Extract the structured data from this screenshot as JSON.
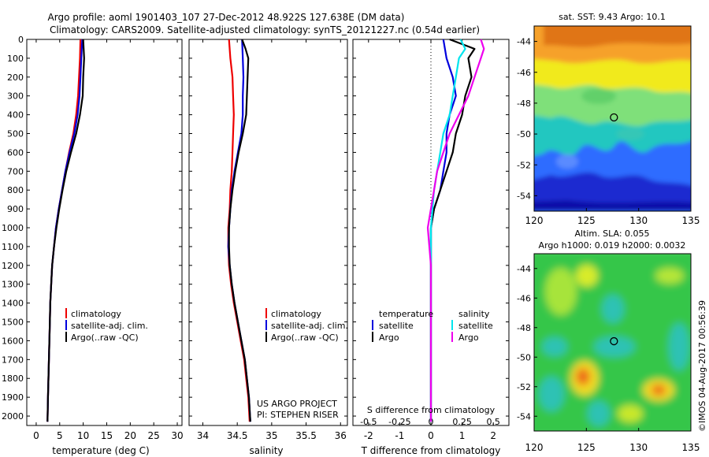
{
  "header": {
    "line1": "Argo profile: aoml 1901403_107 27-Dec-2012 48.922S 127.638E (DM data)",
    "line2": "Climatology: CARS2009. Satellite-adjusted climatology: synTS_20121227.nc (0.54d earlier)"
  },
  "stamp": "©IMOS 04-Aug-2017 00:56:39",
  "project": {
    "line1": "US ARGO PROJECT",
    "line2": "PI: STEPHEN RISER"
  },
  "colors": {
    "climatology": "#ee0000",
    "satellite": "#0000dd",
    "argo": "#000000",
    "sal_satellite": "#00e5ee",
    "sal_argo": "#ee00ee"
  },
  "chart_data": [
    {
      "type": "line",
      "name": "temperature-profile",
      "xlabel": "temperature (deg C)",
      "ylabel": "",
      "xlim": [
        -2,
        31
      ],
      "ylim": [
        2050,
        0
      ],
      "xticks": [
        0,
        5,
        10,
        15,
        20,
        25,
        30
      ],
      "yticks": [
        0,
        100,
        200,
        300,
        400,
        500,
        600,
        700,
        800,
        900,
        1000,
        1100,
        1200,
        1300,
        1400,
        1500,
        1600,
        1700,
        1800,
        1900,
        2000
      ],
      "legend": [
        "climatology",
        "satellite-adj. clim.",
        "Argo(..raw -QC)"
      ],
      "legend_position": "lower-left",
      "series": [
        {
          "name": "climatology",
          "color_key": "climatology",
          "points": [
            [
              9.4,
              0
            ],
            [
              9.3,
              100
            ],
            [
              9.1,
              200
            ],
            [
              8.9,
              300
            ],
            [
              8.5,
              400
            ],
            [
              7.9,
              500
            ],
            [
              7.0,
              600
            ],
            [
              6.2,
              700
            ],
            [
              5.5,
              800
            ],
            [
              4.8,
              900
            ],
            [
              4.2,
              1000
            ],
            [
              3.8,
              1100
            ],
            [
              3.4,
              1200
            ],
            [
              3.2,
              1300
            ],
            [
              3.0,
              1400
            ],
            [
              2.9,
              1500
            ],
            [
              2.8,
              1600
            ],
            [
              2.7,
              1700
            ],
            [
              2.6,
              1800
            ],
            [
              2.5,
              1900
            ],
            [
              2.4,
              2030
            ]
          ]
        },
        {
          "name": "satellite-adj. clim.",
          "color_key": "satellite",
          "points": [
            [
              9.8,
              0
            ],
            [
              9.6,
              100
            ],
            [
              9.4,
              200
            ],
            [
              9.2,
              300
            ],
            [
              8.8,
              400
            ],
            [
              8.1,
              500
            ],
            [
              7.1,
              600
            ],
            [
              6.2,
              700
            ],
            [
              5.5,
              800
            ],
            [
              4.8,
              900
            ],
            [
              4.2,
              1000
            ],
            [
              3.8,
              1100
            ],
            [
              3.4,
              1200
            ],
            [
              3.2,
              1300
            ],
            [
              3.0,
              1400
            ],
            [
              2.9,
              1500
            ],
            [
              2.8,
              1600
            ],
            [
              2.7,
              1700
            ],
            [
              2.6,
              1800
            ],
            [
              2.5,
              1900
            ],
            [
              2.4,
              2030
            ]
          ]
        },
        {
          "name": "Argo(..raw -QC)",
          "color_key": "argo",
          "points": [
            [
              10.0,
              0
            ],
            [
              10.1,
              50
            ],
            [
              10.2,
              100
            ],
            [
              10.0,
              200
            ],
            [
              9.9,
              300
            ],
            [
              9.3,
              400
            ],
            [
              8.5,
              500
            ],
            [
              7.4,
              600
            ],
            [
              6.4,
              700
            ],
            [
              5.6,
              800
            ],
            [
              4.9,
              900
            ],
            [
              4.3,
              1000
            ],
            [
              3.8,
              1100
            ],
            [
              3.4,
              1200
            ],
            [
              3.2,
              1300
            ],
            [
              3.0,
              1400
            ],
            [
              2.9,
              1500
            ],
            [
              2.8,
              1600
            ],
            [
              2.7,
              1700
            ],
            [
              2.6,
              1800
            ],
            [
              2.5,
              1900
            ],
            [
              2.4,
              2030
            ]
          ]
        }
      ]
    },
    {
      "type": "line",
      "name": "salinity-profile",
      "xlabel": "salinity",
      "xlim": [
        33.8,
        36.1
      ],
      "ylim": [
        2050,
        0
      ],
      "xticks": [
        34,
        34.5,
        35,
        35.5,
        36
      ],
      "xticklabels": [
        "34",
        "34.5",
        "35",
        "35.5",
        "36"
      ],
      "legend": [
        "climatology",
        "satellite-adj. clim.",
        "Argo(..raw -QC)"
      ],
      "legend_position": "lower-right",
      "series": [
        {
          "name": "climatology",
          "color_key": "climatology",
          "points": [
            [
              34.38,
              0
            ],
            [
              34.4,
              100
            ],
            [
              34.43,
              200
            ],
            [
              34.44,
              300
            ],
            [
              34.45,
              400
            ],
            [
              34.44,
              500
            ],
            [
              34.43,
              600
            ],
            [
              34.42,
              700
            ],
            [
              34.4,
              800
            ],
            [
              34.39,
              900
            ],
            [
              34.37,
              1000
            ],
            [
              34.37,
              1100
            ],
            [
              34.38,
              1200
            ],
            [
              34.41,
              1300
            ],
            [
              34.45,
              1400
            ],
            [
              34.5,
              1500
            ],
            [
              34.55,
              1600
            ],
            [
              34.6,
              1700
            ],
            [
              34.63,
              1800
            ],
            [
              34.66,
              1900
            ],
            [
              34.68,
              2030
            ]
          ]
        },
        {
          "name": "satellite-adj. clim.",
          "color_key": "satellite",
          "points": [
            [
              34.57,
              0
            ],
            [
              34.58,
              100
            ],
            [
              34.59,
              200
            ],
            [
              34.58,
              300
            ],
            [
              34.58,
              400
            ],
            [
              34.56,
              500
            ],
            [
              34.51,
              600
            ],
            [
              34.46,
              700
            ],
            [
              34.42,
              800
            ],
            [
              34.4,
              900
            ],
            [
              34.38,
              1000
            ],
            [
              34.37,
              1100
            ],
            [
              34.39,
              1200
            ],
            [
              34.42,
              1300
            ],
            [
              34.46,
              1400
            ],
            [
              34.51,
              1500
            ],
            [
              34.56,
              1600
            ],
            [
              34.61,
              1700
            ],
            [
              34.64,
              1800
            ],
            [
              34.67,
              1900
            ],
            [
              34.69,
              2030
            ]
          ]
        },
        {
          "name": "Argo(..raw -QC)",
          "color_key": "argo",
          "points": [
            [
              34.57,
              0
            ],
            [
              34.62,
              50
            ],
            [
              34.66,
              100
            ],
            [
              34.65,
              200
            ],
            [
              34.64,
              300
            ],
            [
              34.63,
              400
            ],
            [
              34.58,
              500
            ],
            [
              34.52,
              600
            ],
            [
              34.47,
              700
            ],
            [
              34.43,
              800
            ],
            [
              34.4,
              900
            ],
            [
              34.38,
              1000
            ],
            [
              34.38,
              1100
            ],
            [
              34.39,
              1200
            ],
            [
              34.42,
              1300
            ],
            [
              34.46,
              1400
            ],
            [
              34.51,
              1500
            ],
            [
              34.56,
              1600
            ],
            [
              34.61,
              1700
            ],
            [
              34.64,
              1800
            ],
            [
              34.67,
              1900
            ],
            [
              34.69,
              2030
            ]
          ]
        }
      ]
    },
    {
      "type": "line",
      "name": "difference-from-climatology",
      "xlabel": "T difference from climatology",
      "top_label": "S difference from climatology",
      "xlim": [
        -2.5,
        2.5
      ],
      "ylim": [
        2050,
        0
      ],
      "xticks": [
        -2,
        -1,
        0,
        1,
        2
      ],
      "top_xticks": [
        "-0.5",
        "-0.25",
        "0",
        "0.25",
        "0.5"
      ],
      "zero_line": "dotted",
      "legend_temperature_title": "temperature",
      "legend_salinity_title": "salinity",
      "legend_temperature": [
        "satellite",
        "Argo"
      ],
      "legend_salinity": [
        "satellite",
        "Argo"
      ],
      "series": [
        {
          "name": "temperature satellite",
          "color_key": "satellite",
          "points": [
            [
              0.4,
              0
            ],
            [
              0.5,
              100
            ],
            [
              0.7,
              200
            ],
            [
              0.8,
              300
            ],
            [
              0.6,
              400
            ],
            [
              0.5,
              500
            ],
            [
              0.5,
              600
            ],
            [
              0.4,
              700
            ],
            [
              0.3,
              800
            ],
            [
              0.1,
              900
            ],
            [
              0.0,
              1000
            ],
            [
              0.0,
              1200
            ],
            [
              0.0,
              2030
            ]
          ]
        },
        {
          "name": "temperature Argo",
          "color_key": "argo",
          "points": [
            [
              0.6,
              0
            ],
            [
              1.4,
              50
            ],
            [
              1.2,
              100
            ],
            [
              1.3,
              200
            ],
            [
              1.1,
              300
            ],
            [
              1.0,
              400
            ],
            [
              0.8,
              500
            ],
            [
              0.7,
              600
            ],
            [
              0.5,
              700
            ],
            [
              0.3,
              800
            ],
            [
              0.1,
              900
            ],
            [
              0.0,
              1000
            ],
            [
              0.0,
              1300
            ],
            [
              0.0,
              2030
            ]
          ]
        },
        {
          "name": "salinity satellite",
          "color_key": "sal_satellite",
          "points": [
            [
              0.95,
              0
            ],
            [
              1.1,
              50
            ],
            [
              0.9,
              100
            ],
            [
              0.8,
              200
            ],
            [
              0.7,
              300
            ],
            [
              0.6,
              400
            ],
            [
              0.4,
              500
            ],
            [
              0.3,
              600
            ],
            [
              0.2,
              700
            ],
            [
              0.1,
              800
            ],
            [
              0.05,
              900
            ],
            [
              0.0,
              1000
            ],
            [
              0.0,
              1400
            ],
            [
              0.0,
              2030
            ]
          ]
        },
        {
          "name": "salinity Argo",
          "color_key": "sal_argo",
          "points": [
            [
              1.6,
              0
            ],
            [
              1.7,
              50
            ],
            [
              1.6,
              100
            ],
            [
              1.4,
              200
            ],
            [
              1.2,
              300
            ],
            [
              0.9,
              400
            ],
            [
              0.6,
              500
            ],
            [
              0.4,
              600
            ],
            [
              0.2,
              700
            ],
            [
              0.1,
              800
            ],
            [
              0.0,
              900
            ],
            [
              -0.1,
              1000
            ],
            [
              -0.05,
              1100
            ],
            [
              0.0,
              1200
            ],
            [
              0.0,
              2030
            ]
          ]
        }
      ]
    },
    {
      "type": "heatmap",
      "name": "satellite-sst-map",
      "title": "sat. SST: 9.43 Argo: 10.1",
      "xlim": [
        120,
        135
      ],
      "ylim": [
        -55,
        -43
      ],
      "xticks": [
        120,
        125,
        130,
        135
      ],
      "yticks": [
        -44,
        -46,
        -48,
        -50,
        -52,
        -54
      ],
      "profile_location": [
        127.638,
        -48.922
      ]
    },
    {
      "type": "heatmap",
      "name": "altimetry-sla-map",
      "title_line1": "Altim. SLA: 0.055",
      "title_line2": "Argo h1000: 0.019 h2000: 0.0032",
      "xlim": [
        120,
        135
      ],
      "ylim": [
        -55,
        -43
      ],
      "xticks": [
        120,
        125,
        130,
        135
      ],
      "yticks": [
        -44,
        -46,
        -48,
        -50,
        -52,
        -54
      ],
      "profile_location": [
        127.638,
        -48.922
      ]
    }
  ]
}
